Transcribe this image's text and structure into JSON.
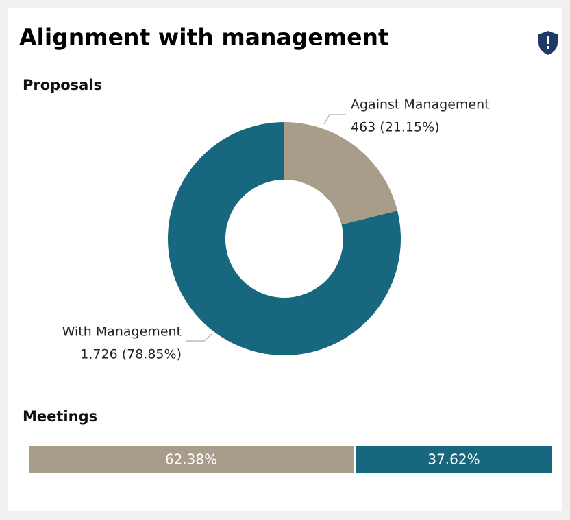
{
  "title": "Alignment with management",
  "chart_data": [
    {
      "type": "pie",
      "donut": true,
      "title": "Proposals",
      "categories": [
        "Against Management",
        "With Management"
      ],
      "values": [
        463,
        1726
      ],
      "value_labels": [
        "463 (21.15%)",
        "1,726 (78.85%)"
      ],
      "colors": [
        "#a89c8a",
        "#17687e"
      ]
    },
    {
      "type": "stacked-bar",
      "title": "Meetings",
      "values": [
        62.38,
        37.62
      ],
      "value_labels": [
        "62.38%",
        "37.62%"
      ],
      "colors": [
        "#a89c8a",
        "#17687e"
      ]
    }
  ]
}
